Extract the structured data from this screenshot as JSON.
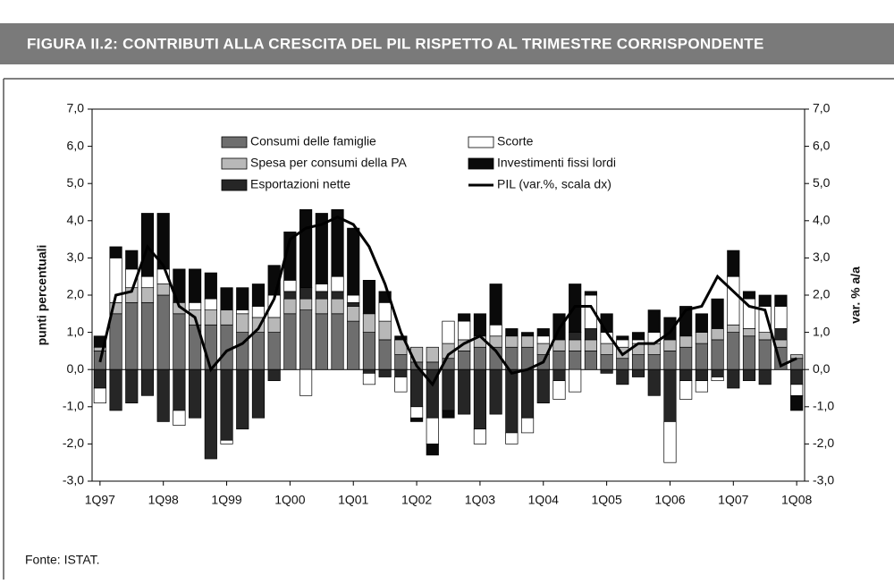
{
  "chart_data": {
    "type": "bar",
    "title": "FIGURA II.2: CONTRIBUTI ALLA CRESCITA DEL PIL RISPETTO AL TRIMESTRE CORRISPONDENTE",
    "ylabel": "punti percentuali",
    "y2label": "var. % a/a",
    "source": "Fonte: ISTAT.",
    "categories": [
      "1Q97",
      null,
      null,
      null,
      "1Q98",
      null,
      null,
      null,
      "1Q99",
      null,
      null,
      null,
      "1Q00",
      null,
      null,
      null,
      "1Q01",
      null,
      null,
      null,
      "1Q02",
      null,
      null,
      null,
      "1Q03",
      null,
      null,
      null,
      "1Q04",
      null,
      null,
      null,
      "1Q05",
      null,
      null,
      null,
      "1Q06",
      null,
      null,
      null,
      "1Q07",
      null,
      null,
      null,
      "1Q08"
    ],
    "series": [
      {
        "name": "Consumi delle famiglie",
        "color": "#6e6e6e",
        "values": [
          0.5,
          1.5,
          1.8,
          1.8,
          2.0,
          1.5,
          1.2,
          1.2,
          1.2,
          1.0,
          1.0,
          1.0,
          1.5,
          1.6,
          1.5,
          1.5,
          1.3,
          1.0,
          0.8,
          0.4,
          0.2,
          0.2,
          0.3,
          0.5,
          0.6,
          0.6,
          0.6,
          0.6,
          0.4,
          0.5,
          0.5,
          0.5,
          0.4,
          0.3,
          0.4,
          0.4,
          0.5,
          0.6,
          0.7,
          0.8,
          1.0,
          0.9,
          0.8,
          0.6,
          0.3
        ]
      },
      {
        "name": "Spesa per consumi della PA",
        "color": "#b8b8b8",
        "values": [
          0.1,
          0.3,
          0.4,
          0.4,
          0.3,
          0.3,
          0.4,
          0.4,
          0.4,
          0.5,
          0.4,
          0.4,
          0.4,
          0.3,
          0.4,
          0.4,
          0.4,
          0.5,
          0.5,
          0.4,
          0.4,
          0.4,
          0.4,
          0.3,
          0.3,
          0.3,
          0.3,
          0.3,
          0.3,
          0.3,
          0.3,
          0.3,
          0.3,
          0.3,
          0.3,
          0.3,
          0.3,
          0.3,
          0.3,
          0.3,
          0.2,
          0.2,
          0.2,
          0.2,
          0.1
        ]
      },
      {
        "name": "Esportazioni nette",
        "color": "#262626",
        "values": [
          -0.5,
          -1.1,
          -0.9,
          -0.7,
          -1.4,
          -1.1,
          -1.3,
          -2.4,
          -1.9,
          -1.6,
          -1.3,
          -0.3,
          0.2,
          0.3,
          0.2,
          0.2,
          0.1,
          -0.1,
          -0.2,
          -0.2,
          -1.0,
          -1.3,
          -1.1,
          -1.2,
          -1.6,
          -1.2,
          -1.7,
          -1.3,
          -0.9,
          -0.3,
          0.2,
          0.3,
          -0.1,
          -0.4,
          -0.2,
          -0.7,
          -1.4,
          -0.3,
          -0.3,
          -0.2,
          -0.5,
          -0.3,
          -0.4,
          0.3,
          -0.4
        ]
      },
      {
        "name": "Scorte",
        "color": "#ffffff",
        "values": [
          -0.4,
          1.2,
          0.5,
          0.3,
          0.4,
          -0.4,
          0.2,
          0.3,
          -0.1,
          0.1,
          0.3,
          0.6,
          0.3,
          -0.7,
          0.2,
          0.4,
          0.2,
          -0.3,
          0.5,
          -0.4,
          -0.3,
          -0.7,
          0.6,
          0.5,
          -0.4,
          0.3,
          -0.3,
          -0.4,
          0.2,
          -0.5,
          -0.6,
          0.9,
          0.3,
          0.2,
          0.1,
          0.3,
          -1.1,
          -0.5,
          -0.3,
          -0.1,
          1.3,
          0.8,
          0.7,
          0.6,
          -0.3
        ]
      },
      {
        "name": "Investimenti fissi lordi",
        "color": "#0a0a0a",
        "values": [
          0.3,
          0.3,
          0.5,
          1.7,
          1.5,
          0.9,
          0.9,
          0.7,
          0.6,
          0.6,
          0.6,
          0.8,
          1.3,
          2.1,
          1.9,
          1.8,
          1.8,
          0.9,
          0.3,
          0.1,
          -0.1,
          -0.3,
          -0.2,
          0.2,
          0.6,
          1.1,
          0.2,
          0.1,
          0.2,
          0.7,
          1.3,
          0.1,
          0.5,
          0.1,
          0.2,
          0.6,
          0.6,
          0.8,
          0.5,
          0.8,
          0.7,
          0.2,
          0.3,
          0.3,
          -0.4
        ]
      },
      {
        "name": "PIL (var.%, scala dx)",
        "color": "#000000",
        "type": "line",
        "axis": "y2",
        "values": [
          0.2,
          2.0,
          2.1,
          3.3,
          2.8,
          1.7,
          1.4,
          0.0,
          0.5,
          0.7,
          1.1,
          1.9,
          3.5,
          3.8,
          3.9,
          4.1,
          3.9,
          3.3,
          2.3,
          1.0,
          0.1,
          -0.4,
          0.4,
          0.7,
          0.9,
          0.5,
          -0.1,
          0.0,
          0.2,
          1.1,
          1.7,
          1.7,
          1.0,
          0.4,
          0.7,
          0.7,
          1.0,
          1.6,
          1.7,
          2.5,
          2.1,
          1.7,
          1.6,
          0.1,
          0.3
        ]
      }
    ],
    "ylim": [
      -3,
      7
    ],
    "yticks": [
      {
        "value": -3,
        "label": "-3,0"
      },
      {
        "value": -2,
        "label": "-2,0"
      },
      {
        "value": -1,
        "label": "-1,0"
      },
      {
        "value": 0,
        "label": "0,0"
      },
      {
        "value": 1,
        "label": "1,0"
      },
      {
        "value": 2,
        "label": "2,0"
      },
      {
        "value": 3,
        "label": "3,0"
      },
      {
        "value": 4,
        "label": "4,0"
      },
      {
        "value": 5,
        "label": "5,0"
      },
      {
        "value": 6,
        "label": "6,0"
      },
      {
        "value": 7,
        "label": "7,0"
      }
    ],
    "y2lim": [
      -3,
      7
    ],
    "y2ticks": [
      {
        "value": -3,
        "label": "-3,0"
      },
      {
        "value": -2,
        "label": "-2,0"
      },
      {
        "value": -1,
        "label": "-1,0"
      },
      {
        "value": 0,
        "label": "0,0"
      },
      {
        "value": 1,
        "label": "1,0"
      },
      {
        "value": 2,
        "label": "2,0"
      },
      {
        "value": 3,
        "label": "3,0"
      },
      {
        "value": 4,
        "label": "4,0"
      },
      {
        "value": 5,
        "label": "5,0"
      },
      {
        "value": 6,
        "label": "6,0"
      },
      {
        "value": 7,
        "label": "7,0"
      }
    ]
  }
}
